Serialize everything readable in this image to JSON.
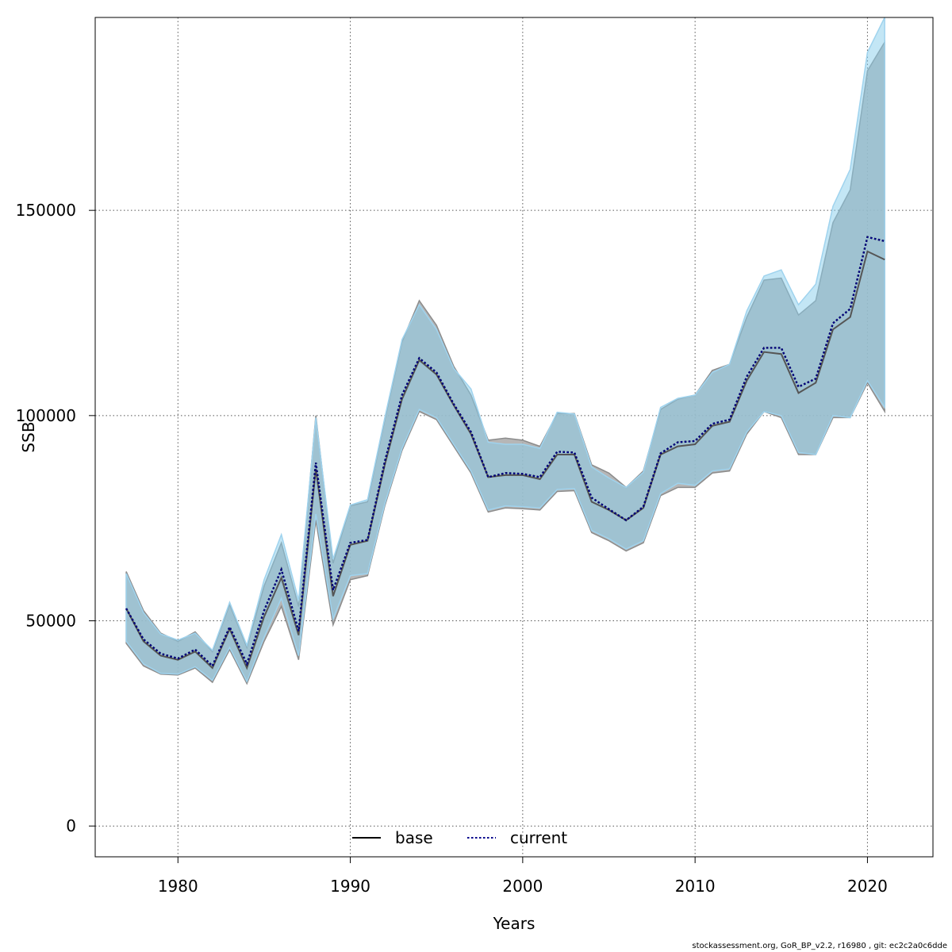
{
  "chart_data": {
    "type": "area",
    "title": "",
    "xlabel": "Years",
    "ylabel": "SSB",
    "xlim": [
      1975.2,
      2023.8
    ],
    "ylim": [
      -7500,
      197000
    ],
    "x_ticks": [
      1980,
      1990,
      2000,
      2010,
      2020
    ],
    "y_ticks": [
      0,
      50000,
      100000,
      150000
    ],
    "grid": true,
    "legend_position": "bottom-center",
    "colors": {
      "base_band": "#a9a9a9",
      "current_band": "#87ceeb",
      "base_line": "#000000",
      "current_line": "#00008b"
    },
    "x": [
      1977,
      1978,
      1979,
      1980,
      1981,
      1982,
      1983,
      1984,
      1985,
      1986,
      1987,
      1988,
      1989,
      1990,
      1991,
      1992,
      1993,
      1994,
      1995,
      1996,
      1997,
      1998,
      1999,
      2000,
      2001,
      2002,
      2003,
      2004,
      2005,
      2006,
      2007,
      2008,
      2009,
      2010,
      2011,
      2012,
      2013,
      2014,
      2015,
      2016,
      2017,
      2018,
      2019,
      2020,
      2021
    ],
    "series": [
      {
        "name": "base",
        "line_style": "solid",
        "values": [
          53000,
          45000,
          41500,
          40500,
          42500,
          38500,
          48000,
          38500,
          51000,
          60500,
          46500,
          87000,
          56000,
          68500,
          69500,
          88000,
          104000,
          113500,
          110000,
          102500,
          95500,
          85000,
          85500,
          85500,
          84500,
          90500,
          90500,
          79000,
          77000,
          74500,
          77500,
          90500,
          92500,
          93000,
          97500,
          98500,
          108500,
          115500,
          115000,
          105500,
          108000,
          121000,
          124000,
          140000,
          138000
        ],
        "lower": [
          44500,
          39000,
          37000,
          36800,
          38500,
          35000,
          43000,
          34700,
          45000,
          53500,
          40500,
          74500,
          49000,
          60000,
          61000,
          78000,
          91500,
          101000,
          99000,
          92500,
          86000,
          76500,
          77500,
          77300,
          77000,
          81500,
          81700,
          71500,
          69500,
          67000,
          69000,
          80500,
          82500,
          82500,
          86000,
          86500,
          95500,
          101000,
          99500,
          90500,
          90500,
          99500,
          99500,
          108000,
          101000
        ],
        "upper": [
          62000,
          52500,
          47000,
          45000,
          47300,
          42500,
          54000,
          43500,
          58500,
          69000,
          53500,
          100000,
          64000,
          78000,
          79000,
          99000,
          118000,
          128000,
          122000,
          112000,
          105000,
          94000,
          94500,
          94000,
          92500,
          100500,
          100500,
          88000,
          86000,
          82500,
          86500,
          101500,
          104000,
          105000,
          111000,
          112500,
          124000,
          133000,
          133500,
          124500,
          128000,
          147000,
          155000,
          184000,
          191000
        ]
      },
      {
        "name": "current",
        "line_style": "dotted",
        "values": [
          53000,
          45500,
          42000,
          40800,
          43000,
          39000,
          48500,
          39500,
          52500,
          62500,
          47500,
          88500,
          57500,
          69000,
          69700,
          88800,
          105000,
          114000,
          110500,
          102800,
          96000,
          85000,
          86000,
          85800,
          85000,
          91200,
          91000,
          80000,
          77200,
          74500,
          77800,
          90800,
          93500,
          93800,
          98000,
          99000,
          109500,
          116500,
          116500,
          107000,
          109000,
          122500,
          126000,
          143500,
          142500
        ],
        "lower": [
          45000,
          39500,
          37200,
          37000,
          38800,
          35500,
          43500,
          35200,
          46000,
          55500,
          41500,
          76000,
          50500,
          61000,
          61500,
          78500,
          92000,
          101500,
          99500,
          93000,
          86500,
          77000,
          78000,
          77800,
          77500,
          82000,
          82200,
          72000,
          70000,
          67500,
          69500,
          81000,
          83500,
          83000,
          86500,
          87000,
          96000,
          101000,
          100000,
          91000,
          90500,
          100000,
          99500,
          108500,
          102000
        ],
        "upper": [
          61500,
          52000,
          46800,
          45300,
          47000,
          42800,
          54500,
          44000,
          60000,
          71000,
          55000,
          99500,
          65000,
          78200,
          79500,
          99500,
          118500,
          127000,
          121000,
          111500,
          106500,
          93500,
          93000,
          93000,
          92000,
          100800,
          100400,
          87500,
          84800,
          82500,
          86200,
          102000,
          104200,
          105000,
          110500,
          112500,
          125500,
          134000,
          135500,
          127000,
          132000,
          151000,
          160000,
          188500,
          197000
        ]
      }
    ]
  },
  "footer_text": "stockassessment.org, GoR_BP_v2.2, r16980 , git: ec2c2a0c6dde"
}
